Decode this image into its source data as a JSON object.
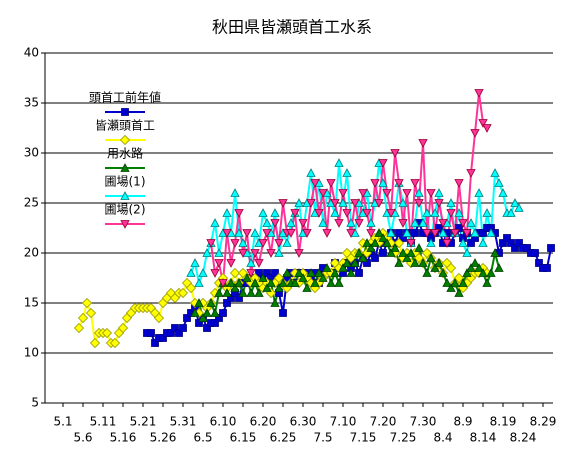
{
  "chart_data": {
    "type": "line",
    "title": "秋田県皆瀬頭首工水系",
    "categories": [
      null,
      null,
      null,
      null,
      "5.1",
      null,
      null,
      null,
      null,
      "5.6",
      null,
      null,
      null,
      null,
      "5.11",
      null,
      null,
      null,
      null,
      "5.16",
      null,
      null,
      null,
      null,
      "5.21",
      null,
      null,
      null,
      null,
      "5.26",
      null,
      null,
      null,
      null,
      "5.31",
      null,
      null,
      null,
      null,
      "6.5",
      null,
      null,
      null,
      null,
      "6.10",
      null,
      null,
      null,
      null,
      "6.15",
      null,
      null,
      null,
      null,
      "6.20",
      null,
      null,
      null,
      null,
      "6.25",
      null,
      null,
      null,
      null,
      "6.30",
      null,
      null,
      null,
      null,
      "7.5",
      null,
      null,
      null,
      null,
      "7.10",
      null,
      null,
      null,
      null,
      "7.15",
      null,
      null,
      null,
      null,
      "7.20",
      null,
      null,
      null,
      null,
      "7.25",
      null,
      null,
      null,
      null,
      "7.30",
      null,
      null,
      null,
      null,
      "8.4",
      null,
      null,
      null,
      null,
      "8.9",
      null,
      null,
      null,
      null,
      "8.14",
      null,
      null,
      null,
      null,
      "8.19",
      null,
      null,
      null,
      null,
      "8.24",
      null,
      null,
      null,
      null,
      "8.29",
      null,
      null
    ],
    "ylim": [
      5,
      40
    ],
    "yticks": [
      5,
      10,
      15,
      20,
      25,
      30,
      35,
      40
    ],
    "grid": true,
    "legend": "upper left",
    "series": [
      {
        "name": "頭首工前年値",
        "color": "#0000cc",
        "edge": "#000080",
        "marker": "square",
        "values": [
          null,
          null,
          null,
          null,
          null,
          null,
          null,
          null,
          null,
          null,
          null,
          null,
          null,
          null,
          null,
          null,
          null,
          null,
          null,
          null,
          null,
          null,
          null,
          null,
          null,
          12,
          12,
          11,
          11.5,
          11.5,
          12,
          12,
          12.5,
          12,
          12.5,
          13.5,
          14,
          14.5,
          13,
          13.5,
          12.5,
          13,
          13,
          13.5,
          14,
          15,
          15.5,
          16,
          15.5,
          17,
          17,
          17.5,
          17,
          18,
          17,
          18,
          17.5,
          18,
          16,
          14,
          17.5,
          18,
          17,
          18,
          18,
          18,
          17.5,
          18,
          17,
          18.5,
          18,
          18,
          19,
          18.5,
          18,
          19,
          18.5,
          19,
          18,
          19.5,
          19,
          20,
          19.5,
          21,
          20,
          21,
          22,
          21,
          22,
          21.5,
          22,
          21,
          22,
          23,
          22,
          22,
          21.5,
          22,
          22.5,
          21,
          22,
          21,
          22,
          22.5,
          21.5,
          22,
          21,
          21.5,
          22,
          22,
          22.5,
          22.5,
          22,
          20,
          21,
          21.5,
          21,
          20.5,
          21,
          20.5,
          20.5,
          20,
          20,
          19,
          18.5,
          18.5,
          20.5
        ]
      },
      {
        "name": "皆瀬頭首工",
        "color": "#ffff00",
        "edge": "#999900",
        "marker": "diamond",
        "values": [
          null,
          null,
          null,
          null,
          null,
          null,
          null,
          null,
          12.5,
          13.5,
          15,
          14,
          11,
          12,
          12,
          12,
          11,
          11,
          12,
          12.5,
          13.5,
          14,
          14.5,
          14.5,
          14.5,
          14.5,
          14.5,
          14,
          13.5,
          15,
          15.5,
          16,
          15.5,
          16,
          16,
          17,
          16.5,
          15,
          14,
          15,
          14.5,
          15,
          16,
          17,
          17.5,
          16.5,
          17,
          18,
          17,
          18,
          17.5,
          17,
          17.5,
          17,
          16.5,
          17,
          16,
          17,
          17.5,
          17,
          16.5,
          17,
          18,
          17,
          18,
          17.5,
          17,
          16.5,
          17,
          17.5,
          18,
          18,
          19,
          18.5,
          19,
          20,
          19.5,
          20,
          20,
          21,
          20,
          21,
          21.5,
          21,
          22,
          21.5,
          21,
          20,
          21,
          19.5,
          20,
          19,
          20,
          19.5,
          19,
          20,
          19.5,
          18.5,
          19,
          18,
          19,
          18.5,
          17,
          17.5,
          16.5,
          17,
          17.5,
          18,
          18,
          18.5,
          18,
          null,
          null,
          null,
          null,
          null,
          null,
          null,
          null,
          null,
          null,
          null,
          null,
          null,
          null,
          null,
          null
        ]
      },
      {
        "name": "用水路",
        "color": "#008000",
        "edge": "#004000",
        "marker": "triangle-up",
        "values": [
          null,
          null,
          null,
          null,
          null,
          null,
          null,
          null,
          null,
          null,
          null,
          null,
          null,
          null,
          null,
          null,
          null,
          null,
          null,
          null,
          null,
          null,
          null,
          null,
          null,
          null,
          null,
          null,
          null,
          null,
          null,
          null,
          null,
          null,
          null,
          null,
          null,
          14,
          15,
          13.5,
          14,
          15,
          14,
          16,
          17,
          16,
          17,
          16.5,
          17,
          16,
          17.5,
          16,
          17,
          16,
          17.5,
          16.5,
          17,
          15,
          16.5,
          17,
          18,
          17,
          17,
          18,
          17.5,
          16.5,
          18,
          17,
          18,
          17.5,
          18.5,
          17,
          18,
          17,
          18.5,
          19,
          18,
          19,
          20,
          19.5,
          21,
          20.5,
          21,
          22,
          21.5,
          21,
          20,
          20.5,
          19,
          20,
          19.5,
          20,
          19,
          20.5,
          19,
          18,
          19.5,
          18.5,
          19,
          18,
          17,
          16.5,
          17,
          16,
          17,
          18,
          18.5,
          19,
          18.5,
          18,
          17,
          18,
          20,
          18.5,
          null,
          null,
          null,
          null,
          null,
          null,
          null,
          null,
          null,
          null,
          null,
          null,
          null
        ]
      },
      {
        "name": "圃場(1)",
        "color": "#00ffff",
        "edge": "#008080",
        "marker": "triangle-up",
        "values": [
          null,
          null,
          null,
          null,
          null,
          null,
          null,
          null,
          null,
          null,
          null,
          null,
          null,
          null,
          null,
          null,
          null,
          null,
          null,
          null,
          null,
          null,
          null,
          null,
          null,
          null,
          null,
          null,
          null,
          null,
          null,
          null,
          null,
          null,
          null,
          null,
          18,
          19,
          17,
          18,
          20,
          21,
          23,
          20,
          22,
          24,
          22,
          26,
          22,
          21,
          20,
          19,
          22,
          21,
          24,
          23,
          22,
          24,
          20,
          22,
          21,
          23,
          24,
          25,
          22,
          25,
          28,
          24,
          27,
          23,
          26,
          25,
          24,
          29,
          25,
          28,
          23,
          22,
          25,
          24,
          26,
          23,
          25,
          29,
          27,
          24,
          22,
          24,
          27,
          25,
          22,
          21,
          23,
          26,
          23,
          24,
          21,
          24,
          26,
          22,
          23,
          25,
          22,
          24,
          21,
          20,
          23,
          22,
          26,
          21,
          24,
          22,
          28,
          27,
          26,
          24,
          24,
          25,
          24.5,
          null,
          null,
          null,
          null,
          null,
          null,
          null,
          null
        ]
      },
      {
        "name": "圃場(2)",
        "color": "#ff3399",
        "edge": "#990033",
        "marker": "triangle-down",
        "values": [
          null,
          null,
          null,
          null,
          null,
          null,
          null,
          null,
          null,
          null,
          null,
          null,
          null,
          null,
          null,
          null,
          null,
          null,
          null,
          null,
          null,
          null,
          null,
          null,
          null,
          null,
          null,
          null,
          null,
          null,
          null,
          null,
          null,
          null,
          null,
          null,
          null,
          null,
          null,
          null,
          null,
          21,
          18,
          19,
          17,
          22,
          19,
          21,
          24,
          20,
          22,
          18,
          20,
          19,
          21,
          22,
          20,
          23,
          21,
          25,
          22,
          22,
          24,
          20,
          23,
          22,
          25,
          27,
          24,
          26,
          22,
          27,
          25,
          23,
          26,
          24,
          22,
          25,
          23,
          26,
          24,
          22,
          27,
          25,
          29,
          26,
          24,
          30,
          27,
          23,
          26,
          21,
          27,
          25,
          31,
          22,
          26,
          22,
          25,
          23,
          21,
          24,
          22,
          27,
          23,
          22,
          28,
          32,
          36,
          33,
          32.5,
          null,
          null,
          null,
          null,
          null,
          null,
          null,
          null,
          null,
          null,
          null,
          null,
          null,
          null,
          null,
          null
        ]
      }
    ]
  }
}
